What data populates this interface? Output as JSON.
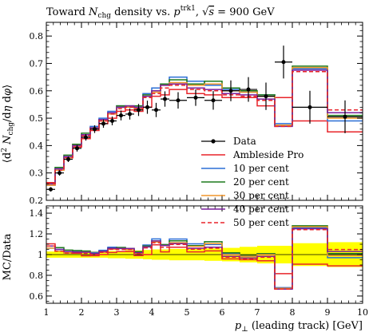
{
  "chart_data": {
    "type": "line",
    "title": {
      "prefix": "Toward ",
      "n": "N",
      "n_sub": "chg",
      "mid": " density vs. ",
      "p": "p",
      "p_sub": "⊥",
      "p_sup": "trk1",
      "sep": ", ",
      "sqrt": "√",
      "s": "s",
      "energy": " = 900 GeV"
    },
    "ylabel_main": "⟨d² N_chg / dη dφ⟩",
    "ylabel_ratio": "MC/Data",
    "xlabel": "p⊥ (leading track) [GeV]",
    "xlim": [
      1,
      10
    ],
    "ylim_main": [
      0.2,
      0.85
    ],
    "ylim_ratio": [
      0.53,
      1.47
    ],
    "x_ticks": [
      "1",
      "2",
      "3",
      "4",
      "5",
      "6",
      "7",
      "8",
      "9",
      "10"
    ],
    "y_ticks_main": [
      "0.2",
      "0.3",
      "0.4",
      "0.5",
      "0.6",
      "0.7",
      "0.8"
    ],
    "y_ticks_ratio": [
      "0.6",
      "0.8",
      "1",
      "1.2",
      "1.4"
    ],
    "bin_edges": [
      1.0,
      1.25,
      1.5,
      1.75,
      2.0,
      2.25,
      2.5,
      2.75,
      3.0,
      3.25,
      3.5,
      3.75,
      4.0,
      4.25,
      4.5,
      5.0,
      5.5,
      6.0,
      6.5,
      7.0,
      7.5,
      8.0,
      9.0,
      10.0
    ],
    "data": {
      "name": "Data",
      "x": [
        1.125,
        1.375,
        1.625,
        1.875,
        2.125,
        2.375,
        2.625,
        2.875,
        3.125,
        3.375,
        3.625,
        3.875,
        4.125,
        4.375,
        4.75,
        5.25,
        5.75,
        6.25,
        6.75,
        7.25,
        7.75,
        8.5,
        9.5
      ],
      "y": [
        0.24,
        0.3,
        0.35,
        0.39,
        0.43,
        0.46,
        0.48,
        0.49,
        0.51,
        0.515,
        0.53,
        0.54,
        0.53,
        0.57,
        0.565,
        0.575,
        0.565,
        0.6,
        0.605,
        0.58,
        0.705,
        0.54,
        0.505
      ],
      "yerr": [
        0.008,
        0.01,
        0.01,
        0.012,
        0.012,
        0.014,
        0.015,
        0.016,
        0.018,
        0.02,
        0.022,
        0.024,
        0.026,
        0.028,
        0.03,
        0.03,
        0.034,
        0.038,
        0.045,
        0.05,
        0.06,
        0.06,
        0.06
      ]
    },
    "series": [
      {
        "name": "Ambleside Pro",
        "color": "#e8242a",
        "dash": false,
        "values": [
          0.265,
          0.31,
          0.355,
          0.395,
          0.425,
          0.455,
          0.48,
          0.5,
          0.525,
          0.53,
          0.525,
          0.54,
          0.58,
          0.585,
          0.605,
          0.59,
          0.585,
          0.575,
          0.575,
          0.545,
          0.575,
          0.49,
          0.45
        ]
      },
      {
        "name": "10 per cent",
        "color": "#2b6fd6",
        "dash": false,
        "values": [
          0.255,
          0.315,
          0.36,
          0.405,
          0.44,
          0.47,
          0.5,
          0.525,
          0.545,
          0.54,
          0.54,
          0.59,
          0.61,
          0.625,
          0.65,
          0.635,
          0.62,
          0.605,
          0.595,
          0.585,
          0.48,
          0.68,
          0.49
        ]
      },
      {
        "name": "20 per cent",
        "color": "#1d7a1d",
        "dash": false,
        "values": [
          0.26,
          0.32,
          0.365,
          0.405,
          0.445,
          0.465,
          0.495,
          0.52,
          0.545,
          0.545,
          0.545,
          0.585,
          0.6,
          0.625,
          0.64,
          0.625,
          0.635,
          0.61,
          0.6,
          0.585,
          0.475,
          0.69,
          0.51
        ]
      },
      {
        "name": "30 per cent",
        "color": "#f0962b",
        "dash": false,
        "values": [
          0.255,
          0.31,
          0.355,
          0.4,
          0.44,
          0.465,
          0.49,
          0.515,
          0.54,
          0.54,
          0.535,
          0.58,
          0.595,
          0.62,
          0.63,
          0.62,
          0.625,
          0.6,
          0.595,
          0.58,
          0.475,
          0.685,
          0.5
        ]
      },
      {
        "name": "40 per cent",
        "color": "#7a1f9c",
        "dash": false,
        "values": [
          0.26,
          0.315,
          0.36,
          0.4,
          0.44,
          0.465,
          0.495,
          0.52,
          0.54,
          0.545,
          0.54,
          0.58,
          0.6,
          0.62,
          0.625,
          0.61,
          0.605,
          0.59,
          0.585,
          0.57,
          0.47,
          0.675,
          0.52
        ]
      },
      {
        "name": "50 per cent",
        "color": "#e8242a",
        "dash": true,
        "values": [
          0.26,
          0.31,
          0.355,
          0.395,
          0.435,
          0.46,
          0.49,
          0.515,
          0.535,
          0.54,
          0.535,
          0.575,
          0.59,
          0.61,
          0.62,
          0.605,
          0.6,
          0.585,
          0.58,
          0.565,
          0.47,
          0.67,
          0.53
        ]
      }
    ],
    "ratio_band": [
      0.03,
      0.03,
      0.03,
      0.03,
      0.03,
      0.03,
      0.03,
      0.035,
      0.035,
      0.04,
      0.04,
      0.045,
      0.05,
      0.05,
      0.055,
      0.055,
      0.06,
      0.065,
      0.075,
      0.085,
      0.085,
      0.11,
      0.12
    ],
    "legend_placement": "lower-right",
    "legend_data_label": "Data",
    "band_color": "#ffff00",
    "grid": false
  }
}
